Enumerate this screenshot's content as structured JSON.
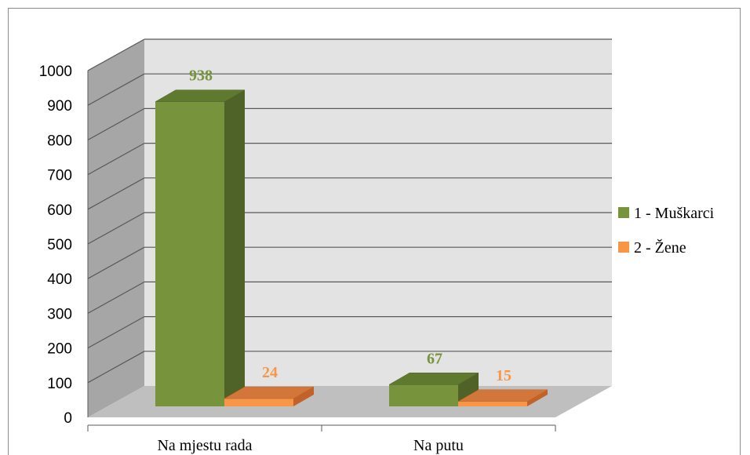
{
  "chart_data": {
    "type": "bar",
    "title": "",
    "xlabel": "",
    "ylabel": "",
    "categories": [
      "Na mjestu rada",
      "Na putu"
    ],
    "series": [
      {
        "name": "1 - Muškarci",
        "values": [
          938,
          67
        ],
        "color": "#77933c",
        "side_color": "#4f6228",
        "top_color": "#5f7a2f"
      },
      {
        "name": "2 - Žene",
        "values": [
          24,
          15
        ],
        "color": "#f79646",
        "side_color": "#c0622a",
        "top_color": "#d2763a"
      }
    ],
    "ylim": [
      0,
      1000
    ],
    "yticks": [
      "0",
      "100",
      "200",
      "300",
      "400",
      "500",
      "600",
      "700",
      "800",
      "900",
      "1000"
    ],
    "grid": true,
    "legend_position": "right",
    "chart_style": "3d-clustered-column"
  }
}
